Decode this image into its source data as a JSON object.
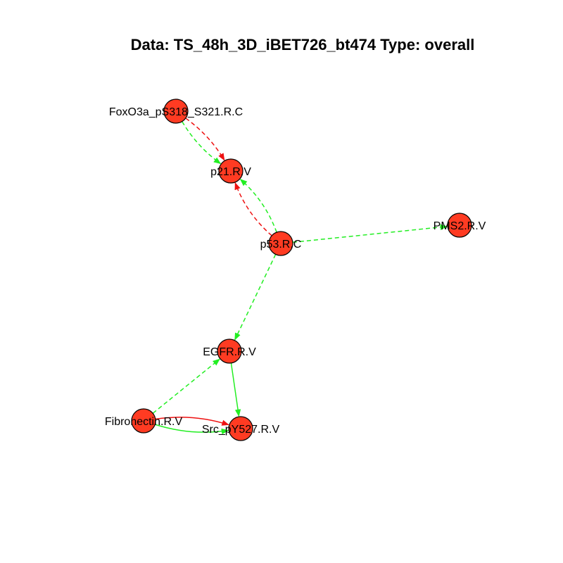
{
  "title": "Data: TS_48h_3D_iBET726_bt474 Type: overall",
  "colors": {
    "node_fill": "#ff3b22",
    "node_stroke": "#000000",
    "activation": "#22ee22",
    "inhibition": "#ee1111"
  },
  "nodes": [
    {
      "id": "foxo3a",
      "label": "FoxO3a_pS318_S321.R.C"
    },
    {
      "id": "p21",
      "label": "p21.R.V"
    },
    {
      "id": "p53",
      "label": "p53.R.C"
    },
    {
      "id": "pms2",
      "label": "PMS2.R.V"
    },
    {
      "id": "egfr",
      "label": "EGFR.R.V"
    },
    {
      "id": "fibronectin",
      "label": "Fibronectin.R.V"
    },
    {
      "id": "src",
      "label": "Src_pY527.R.V"
    }
  ],
  "edges": [
    {
      "from": "foxo3a",
      "to": "p21",
      "color": "inhibition",
      "style": "dashed"
    },
    {
      "from": "foxo3a",
      "to": "p21",
      "color": "activation",
      "style": "dashed"
    },
    {
      "from": "p53",
      "to": "p21",
      "color": "inhibition",
      "style": "dashed"
    },
    {
      "from": "p53",
      "to": "p21",
      "color": "activation",
      "style": "dashed"
    },
    {
      "from": "p53",
      "to": "pms2",
      "color": "activation",
      "style": "dashed"
    },
    {
      "from": "p53",
      "to": "egfr",
      "color": "activation",
      "style": "dashed"
    },
    {
      "from": "fibronectin",
      "to": "egfr",
      "color": "activation",
      "style": "dashed"
    },
    {
      "from": "egfr",
      "to": "src",
      "color": "activation",
      "style": "solid"
    },
    {
      "from": "fibronectin",
      "to": "src",
      "color": "inhibition",
      "style": "solid"
    },
    {
      "from": "fibronectin",
      "to": "src",
      "color": "activation",
      "style": "solid"
    }
  ]
}
